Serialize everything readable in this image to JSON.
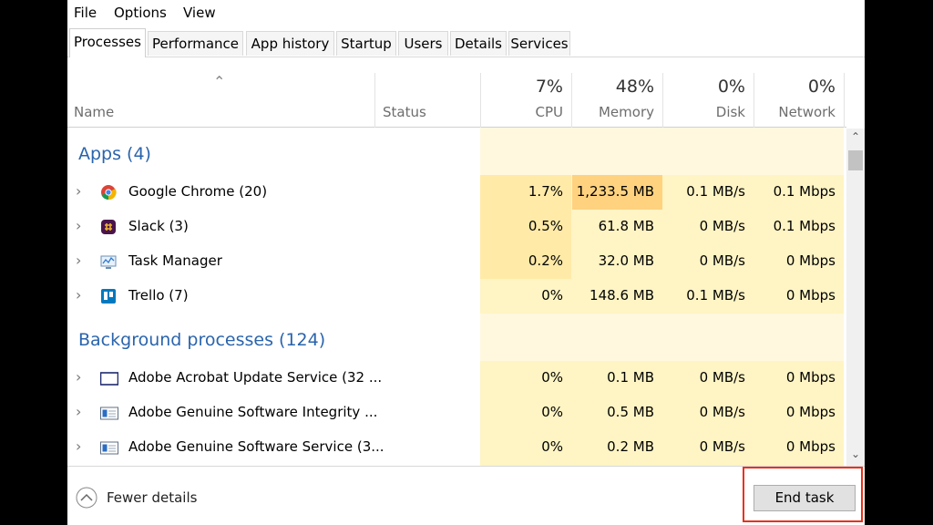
{
  "menu": [
    "File",
    "Options",
    "View"
  ],
  "tabs": [
    "Processes",
    "Performance",
    "App history",
    "Startup",
    "Users",
    "Details",
    "Services"
  ],
  "columns": {
    "name": "Name",
    "status": "Status",
    "usage": [
      {
        "percent": "7%",
        "label": "CPU"
      },
      {
        "percent": "48%",
        "label": "Memory"
      },
      {
        "percent": "0%",
        "label": "Disk"
      },
      {
        "percent": "0%",
        "label": "Network"
      }
    ]
  },
  "groups": [
    {
      "title": "Apps (4)",
      "rows": [
        {
          "name": "Google Chrome (20)",
          "icon": "chrome",
          "values": [
            "1.7%",
            "1,233.5 MB",
            "0.1 MB/s",
            "0.1 Mbps"
          ]
        },
        {
          "name": "Slack (3)",
          "icon": "slack",
          "values": [
            "0.5%",
            "61.8 MB",
            "0 MB/s",
            "0.1 Mbps"
          ]
        },
        {
          "name": "Task Manager",
          "icon": "taskmgr",
          "values": [
            "0.2%",
            "32.0 MB",
            "0 MB/s",
            "0 Mbps"
          ]
        },
        {
          "name": "Trello (7)",
          "icon": "trello",
          "values": [
            "0%",
            "148.6 MB",
            "0.1 MB/s",
            "0 Mbps"
          ]
        }
      ]
    },
    {
      "title": "Background processes (124)",
      "rows": [
        {
          "name": "Adobe Acrobat Update Service (32 ...",
          "icon": "window",
          "values": [
            "0%",
            "0.1 MB",
            "0 MB/s",
            "0 Mbps"
          ]
        },
        {
          "name": "Adobe Genuine Software Integrity ...",
          "icon": "service",
          "values": [
            "0%",
            "0.5 MB",
            "0 MB/s",
            "0 Mbps"
          ]
        },
        {
          "name": "Adobe Genuine Software Service (3...",
          "icon": "service",
          "values": [
            "0%",
            "0.2 MB",
            "0 MB/s",
            "0 Mbps"
          ]
        }
      ]
    }
  ],
  "footer": {
    "fewer_details": "Fewer details",
    "end_task": "End task"
  }
}
